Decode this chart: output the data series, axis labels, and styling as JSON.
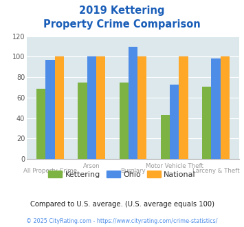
{
  "title_line1": "2019 Kettering",
  "title_line2": "Property Crime Comparison",
  "categories": [
    "All Property Crime",
    "Arson",
    "Burglary",
    "Motor Vehicle Theft",
    "Larceny & Theft"
  ],
  "kettering": [
    69,
    75,
    75,
    43,
    71
  ],
  "ohio": [
    97,
    100,
    110,
    73,
    98
  ],
  "national": [
    100,
    100,
    100,
    100,
    100
  ],
  "kettering_color": "#7cb342",
  "ohio_color": "#4d8de8",
  "national_color": "#ffa726",
  "ylim": [
    0,
    120
  ],
  "yticks": [
    0,
    20,
    40,
    60,
    80,
    100,
    120
  ],
  "background_color": "#dce8ec",
  "title_color": "#1a5eb8",
  "footnote1": "Compared to U.S. average. (U.S. average equals 100)",
  "footnote2": "© 2025 CityRating.com - https://www.cityrating.com/crime-statistics/",
  "footnote1_color": "#1a1a1a",
  "footnote2_color": "#4d8de8"
}
